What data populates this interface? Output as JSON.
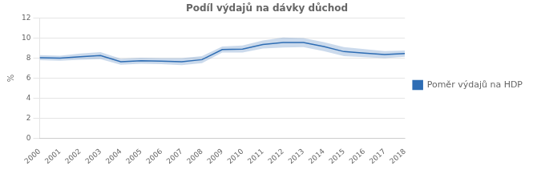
{
  "chart_data": {
    "type": "line",
    "title": "Podíl výdajů na dávky důchod",
    "y_label": "%",
    "x": [
      2000,
      2001,
      2002,
      2003,
      2004,
      2005,
      2006,
      2007,
      2008,
      2009,
      2010,
      2011,
      2012,
      2013,
      2014,
      2015,
      2016,
      2017,
      2018
    ],
    "series": [
      {
        "name": "Poměr výdajů na HDP",
        "color": "#2e6db4",
        "values": [
          8.05,
          8.0,
          8.15,
          8.25,
          7.65,
          7.75,
          7.7,
          7.65,
          7.85,
          8.85,
          8.9,
          9.35,
          9.55,
          9.55,
          9.15,
          8.65,
          8.5,
          8.35,
          8.45
        ],
        "ci_upper": [
          8.3,
          8.25,
          8.45,
          8.6,
          7.95,
          8.05,
          8.0,
          8.0,
          8.2,
          9.15,
          9.25,
          9.75,
          10.05,
          10.0,
          9.6,
          9.1,
          8.9,
          8.7,
          8.75
        ],
        "ci_lower": [
          7.8,
          7.75,
          7.85,
          7.9,
          7.35,
          7.45,
          7.4,
          7.3,
          7.5,
          8.55,
          8.55,
          8.95,
          9.05,
          9.1,
          8.7,
          8.2,
          8.1,
          8.0,
          8.15
        ]
      }
    ],
    "xlim": [
      2000,
      2018
    ],
    "xticks": [
      2000,
      2001,
      2002,
      2003,
      2004,
      2005,
      2006,
      2007,
      2008,
      2009,
      2010,
      2011,
      2012,
      2013,
      2014,
      2015,
      2016,
      2017,
      2018
    ],
    "ylim": [
      0,
      12
    ],
    "yticks": [
      0,
      2,
      4,
      6,
      8,
      10,
      12
    ],
    "grid": true,
    "legend": "right"
  }
}
